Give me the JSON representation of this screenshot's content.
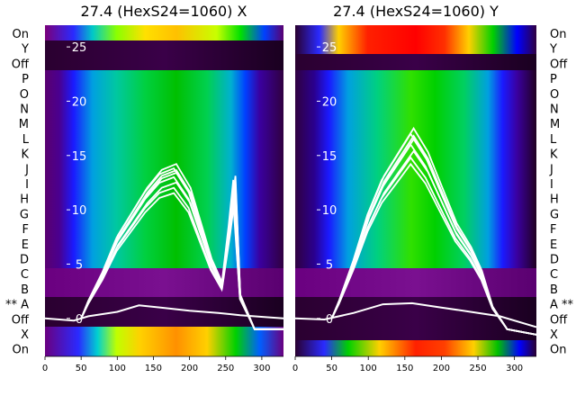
{
  "chart_data": [
    {
      "type": "heatmap",
      "title": "27.4 (HexS24=1060) X",
      "xlabel": "",
      "ylabel": "",
      "x_ticks": [
        0,
        50,
        100,
        150,
        200,
        250,
        300
      ],
      "xlim": [
        0,
        330
      ],
      "row_labels_left": [
        "On",
        "Y",
        "Off",
        "P",
        "O",
        "N",
        "M",
        "L",
        "K",
        "J",
        "I",
        "H",
        "G",
        "F",
        "E",
        "D",
        "C",
        "B",
        "** A",
        "Off",
        "X",
        "On"
      ],
      "overlay_y_ticks": [
        25,
        20,
        15,
        10,
        5,
        0
      ],
      "overlay_ylim": [
        -3.5,
        27
      ],
      "grid": false,
      "overlay_curves": {
        "baseline": [
          [
            0,
            0
          ],
          [
            40,
            -0.2
          ],
          [
            60,
            0.2
          ],
          [
            100,
            0.6
          ],
          [
            130,
            1.2
          ],
          [
            160,
            1.0
          ],
          [
            200,
            0.7
          ],
          [
            240,
            0.5
          ],
          [
            270,
            0.3
          ],
          [
            310,
            0.1
          ],
          [
            330,
            0.0
          ]
        ],
        "peak_envelope": [
          [
            50,
            0
          ],
          [
            60,
            1.5
          ],
          [
            80,
            4
          ],
          [
            100,
            7
          ],
          [
            120,
            9
          ],
          [
            140,
            11
          ],
          [
            160,
            12.5
          ],
          [
            180,
            13
          ],
          [
            200,
            11
          ],
          [
            215,
            8
          ],
          [
            230,
            5
          ],
          [
            245,
            3
          ],
          [
            255,
            8
          ],
          [
            262,
            12
          ],
          [
            270,
            2
          ],
          [
            290,
            -1
          ],
          [
            330,
            -1
          ]
        ]
      }
    },
    {
      "type": "heatmap",
      "title": "27.4 (HexS24=1060) Y",
      "xlabel": "",
      "ylabel": "",
      "x_ticks": [
        0,
        50,
        100,
        150,
        200,
        250,
        300
      ],
      "xlim": [
        0,
        330
      ],
      "row_labels_right": [
        "On",
        "Y",
        "Off",
        "P",
        "O",
        "N",
        "M",
        "L",
        "K",
        "J",
        "I",
        "H",
        "G",
        "F",
        "E",
        "D",
        "C",
        "B",
        "A **",
        "Off",
        "X",
        "On"
      ],
      "overlay_y_ticks": [
        25,
        20,
        15,
        10,
        5,
        0
      ],
      "overlay_ylim": [
        -3.5,
        27
      ],
      "grid": false,
      "overlay_curves": {
        "baseline": [
          [
            0,
            0
          ],
          [
            40,
            -0.1
          ],
          [
            80,
            0.5
          ],
          [
            120,
            1.3
          ],
          [
            160,
            1.4
          ],
          [
            200,
            1.0
          ],
          [
            240,
            0.6
          ],
          [
            280,
            0.2
          ],
          [
            330,
            -0.8
          ]
        ],
        "peak_envelope": [
          [
            50,
            0
          ],
          [
            60,
            1.5
          ],
          [
            80,
            5
          ],
          [
            100,
            9
          ],
          [
            120,
            12
          ],
          [
            140,
            14
          ],
          [
            160,
            16
          ],
          [
            180,
            14
          ],
          [
            200,
            11
          ],
          [
            220,
            8
          ],
          [
            240,
            6
          ],
          [
            255,
            4
          ],
          [
            270,
            1
          ],
          [
            290,
            -1
          ],
          [
            330,
            -1.5
          ]
        ]
      }
    }
  ]
}
